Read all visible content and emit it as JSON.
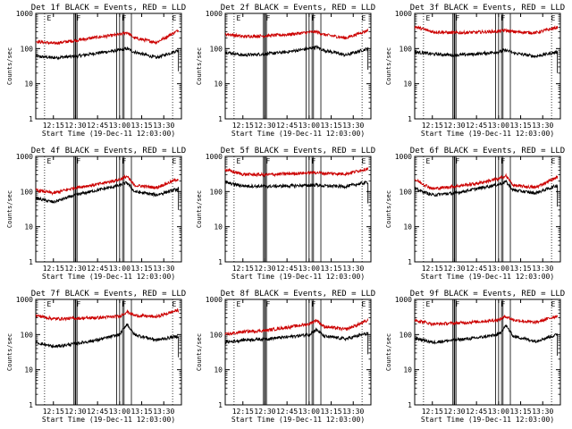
{
  "chart_data": [
    {
      "type": "line",
      "title": "Det 1f BLACK = Events, RED = LLD",
      "xlabel": "Start Time (19-Dec-11 12:03:00)",
      "ylabel": "Counts/sec",
      "x_ticks": [
        "12:15",
        "12:30",
        "12:45",
        "13:00",
        "13:15",
        "13:30"
      ],
      "y_ticks": [
        "1",
        "10",
        "100",
        "1000"
      ],
      "yscale": "log",
      "ylim": [
        1,
        1000
      ],
      "xlim": [
        "12:03",
        "13:42"
      ],
      "flags": [
        "E",
        "F",
        "F",
        "E"
      ],
      "series": [
        {
          "name": "BLACK = Events",
          "color": "#000000",
          "x": [
            "12:03",
            "12:15",
            "12:30",
            "12:45",
            "13:00",
            "13:05",
            "13:10",
            "13:25",
            "13:40"
          ],
          "y": [
            60,
            55,
            60,
            75,
            90,
            100,
            80,
            55,
            90
          ]
        },
        {
          "name": "RED = LLD",
          "color": "#cc0000",
          "x": [
            "12:03",
            "12:15",
            "12:30",
            "12:45",
            "13:00",
            "13:05",
            "13:10",
            "13:25",
            "13:40"
          ],
          "y": [
            160,
            140,
            170,
            210,
            250,
            290,
            200,
            150,
            330
          ]
        }
      ]
    },
    {
      "type": "line",
      "title": "Det 2f BLACK = Events, RED = LLD",
      "xlabel": "Start Time (19-Dec-11 12:03:00)",
      "ylabel": "Counts/sec",
      "x_ticks": [
        "12:15",
        "12:30",
        "12:45",
        "13:00",
        "13:15",
        "13:30"
      ],
      "y_ticks": [
        "1",
        "10",
        "100",
        "1000"
      ],
      "yscale": "log",
      "ylim": [
        1,
        1000
      ],
      "xlim": [
        "12:03",
        "13:42"
      ],
      "flags": [
        "E",
        "F",
        "F",
        "E"
      ],
      "series": [
        {
          "name": "BLACK = Events",
          "color": "#000000",
          "x": [
            "12:03",
            "12:15",
            "12:30",
            "12:45",
            "13:00",
            "13:05",
            "13:10",
            "13:25",
            "13:40"
          ],
          "y": [
            80,
            65,
            70,
            80,
            100,
            110,
            90,
            65,
            100
          ]
        },
        {
          "name": "RED = LLD",
          "color": "#cc0000",
          "x": [
            "12:03",
            "12:15",
            "12:30",
            "12:45",
            "13:00",
            "13:05",
            "13:10",
            "13:25",
            "13:40"
          ],
          "y": [
            260,
            220,
            230,
            250,
            290,
            300,
            250,
            200,
            330
          ]
        }
      ]
    },
    {
      "type": "line",
      "title": "Det 3f BLACK = Events, RED = LLD",
      "xlabel": "Start Time (19-Dec-11 12:03:00)",
      "ylabel": "Counts/sec",
      "x_ticks": [
        "12:15",
        "12:30",
        "12:45",
        "13:00",
        "13:15",
        "13:30"
      ],
      "y_ticks": [
        "1",
        "10",
        "100",
        "1000"
      ],
      "yscale": "log",
      "ylim": [
        1,
        1000
      ],
      "xlim": [
        "12:03",
        "13:42"
      ],
      "flags": [
        "E",
        "F",
        "F",
        "E"
      ],
      "series": [
        {
          "name": "BLACK = Events",
          "color": "#000000",
          "x": [
            "12:03",
            "12:15",
            "12:30",
            "12:45",
            "13:00",
            "13:05",
            "13:10",
            "13:25",
            "13:40"
          ],
          "y": [
            80,
            70,
            65,
            70,
            80,
            90,
            75,
            60,
            80
          ]
        },
        {
          "name": "RED = LLD",
          "color": "#cc0000",
          "x": [
            "12:03",
            "12:15",
            "12:30",
            "12:45",
            "13:00",
            "13:05",
            "13:10",
            "13:25",
            "13:40"
          ],
          "y": [
            420,
            300,
            280,
            290,
            310,
            330,
            300,
            280,
            400
          ]
        }
      ]
    },
    {
      "type": "line",
      "title": "Det 4f BLACK = Events, RED = LLD",
      "xlabel": "Start Time (19-Dec-11 12:03:00)",
      "ylabel": "Counts/sec",
      "x_ticks": [
        "12:15",
        "12:30",
        "12:45",
        "13:00",
        "13:15",
        "13:30"
      ],
      "y_ticks": [
        "1",
        "10",
        "100",
        "1000"
      ],
      "yscale": "log",
      "ylim": [
        1,
        1000
      ],
      "xlim": [
        "12:03",
        "13:42"
      ],
      "flags": [
        "E",
        "F",
        "F",
        "E"
      ],
      "series": [
        {
          "name": "BLACK = Events",
          "color": "#000000",
          "x": [
            "12:03",
            "12:15",
            "12:30",
            "12:45",
            "13:00",
            "13:05",
            "13:10",
            "13:25",
            "13:40"
          ],
          "y": [
            65,
            50,
            80,
            110,
            150,
            180,
            100,
            80,
            120
          ]
        },
        {
          "name": "RED = LLD",
          "color": "#cc0000",
          "x": [
            "12:03",
            "12:15",
            "12:30",
            "12:45",
            "13:00",
            "13:05",
            "13:10",
            "13:25",
            "13:40"
          ],
          "y": [
            110,
            90,
            130,
            160,
            220,
            270,
            150,
            130,
            230
          ]
        }
      ]
    },
    {
      "type": "line",
      "title": "Det 5f BLACK = Events, RED = LLD",
      "xlabel": "Start Time (19-Dec-11 12:03:00)",
      "ylabel": "Counts/sec",
      "x_ticks": [
        "12:15",
        "12:30",
        "12:45",
        "13:00",
        "13:15",
        "13:30"
      ],
      "y_ticks": [
        "1",
        "10",
        "100",
        "1000"
      ],
      "yscale": "log",
      "ylim": [
        1,
        1000
      ],
      "xlim": [
        "12:03",
        "13:42"
      ],
      "flags": [
        "E",
        "F",
        "F",
        "E"
      ],
      "series": [
        {
          "name": "BLACK = Events",
          "color": "#000000",
          "x": [
            "12:03",
            "12:15",
            "12:30",
            "12:45",
            "13:00",
            "13:05",
            "13:10",
            "13:25",
            "13:40"
          ],
          "y": [
            180,
            145,
            140,
            145,
            150,
            155,
            145,
            140,
            185
          ]
        },
        {
          "name": "RED = LLD",
          "color": "#cc0000",
          "x": [
            "12:03",
            "12:15",
            "12:30",
            "12:45",
            "13:00",
            "13:05",
            "13:10",
            "13:25",
            "13:40"
          ],
          "y": [
            420,
            310,
            300,
            320,
            340,
            350,
            330,
            320,
            450
          ]
        }
      ]
    },
    {
      "type": "line",
      "title": "Det 6f BLACK = Events, RED = LLD",
      "xlabel": "Start Time (19-Dec-11 12:03:00)",
      "ylabel": "Counts/sec",
      "x_ticks": [
        "12:15",
        "12:30",
        "12:45",
        "13:00",
        "13:15",
        "13:30"
      ],
      "y_ticks": [
        "1",
        "10",
        "100",
        "1000"
      ],
      "yscale": "log",
      "ylim": [
        1,
        1000
      ],
      "xlim": [
        "12:03",
        "13:42"
      ],
      "flags": [
        "E",
        "F",
        "F",
        "E"
      ],
      "series": [
        {
          "name": "BLACK = Events",
          "color": "#000000",
          "x": [
            "12:03",
            "12:15",
            "12:30",
            "12:45",
            "13:00",
            "13:05",
            "13:10",
            "13:25",
            "13:40"
          ],
          "y": [
            120,
            80,
            90,
            120,
            160,
            190,
            110,
            90,
            150
          ]
        },
        {
          "name": "RED = LLD",
          "color": "#cc0000",
          "x": [
            "12:03",
            "12:15",
            "12:30",
            "12:45",
            "13:00",
            "13:05",
            "13:10",
            "13:25",
            "13:40"
          ],
          "y": [
            220,
            120,
            140,
            170,
            230,
            280,
            150,
            130,
            260
          ]
        }
      ]
    },
    {
      "type": "line",
      "title": "Det 7f BLACK = Events, RED = LLD",
      "xlabel": "Start Time (19-Dec-11 12:03:00)",
      "ylabel": "Counts/sec",
      "x_ticks": [
        "12:15",
        "12:30",
        "12:45",
        "13:00",
        "13:15",
        "13:30"
      ],
      "y_ticks": [
        "1",
        "10",
        "100",
        "1000"
      ],
      "yscale": "log",
      "ylim": [
        1,
        1000
      ],
      "xlim": [
        "12:03",
        "13:42"
      ],
      "flags": [
        "E",
        "F",
        "F",
        "E"
      ],
      "series": [
        {
          "name": "BLACK = Events",
          "color": "#000000",
          "x": [
            "12:03",
            "12:15",
            "12:30",
            "12:45",
            "13:00",
            "13:05",
            "13:10",
            "13:25",
            "13:40"
          ],
          "y": [
            60,
            45,
            55,
            70,
            100,
            200,
            100,
            70,
            90
          ]
        },
        {
          "name": "RED = LLD",
          "color": "#cc0000",
          "x": [
            "12:03",
            "12:15",
            "12:30",
            "12:45",
            "13:00",
            "13:05",
            "13:10",
            "13:25",
            "13:40"
          ],
          "y": [
            350,
            280,
            290,
            300,
            330,
            450,
            350,
            320,
            500
          ]
        }
      ]
    },
    {
      "type": "line",
      "title": "Det 8f BLACK = Events, RED = LLD",
      "xlabel": "Start Time (19-Dec-11 12:03:00)",
      "ylabel": "Counts/sec",
      "x_ticks": [
        "12:15",
        "12:30",
        "12:45",
        "13:00",
        "13:15",
        "13:30"
      ],
      "y_ticks": [
        "1",
        "10",
        "100",
        "1000"
      ],
      "yscale": "log",
      "ylim": [
        1,
        1000
      ],
      "xlim": [
        "12:03",
        "13:42"
      ],
      "flags": [
        "E",
        "F",
        "F",
        "E"
      ],
      "series": [
        {
          "name": "BLACK = Events",
          "color": "#000000",
          "x": [
            "12:03",
            "12:15",
            "12:30",
            "12:45",
            "13:00",
            "13:05",
            "13:10",
            "13:25",
            "13:40"
          ],
          "y": [
            60,
            70,
            75,
            85,
            100,
            140,
            90,
            75,
            110
          ]
        },
        {
          "name": "RED = LLD",
          "color": "#cc0000",
          "x": [
            "12:03",
            "12:15",
            "12:30",
            "12:45",
            "13:00",
            "13:05",
            "13:10",
            "13:25",
            "13:40"
          ],
          "y": [
            100,
            120,
            130,
            160,
            200,
            260,
            170,
            140,
            250
          ]
        }
      ]
    },
    {
      "type": "line",
      "title": "Det 9f BLACK = Events, RED = LLD",
      "xlabel": "Start Time (19-Dec-11 12:03:00)",
      "ylabel": "Counts/sec",
      "x_ticks": [
        "12:15",
        "12:30",
        "12:45",
        "13:00",
        "13:15",
        "13:30"
      ],
      "y_ticks": [
        "1",
        "10",
        "100",
        "1000"
      ],
      "yscale": "log",
      "ylim": [
        1,
        1000
      ],
      "xlim": [
        "12:03",
        "13:42"
      ],
      "flags": [
        "E",
        "F",
        "F",
        "E"
      ],
      "series": [
        {
          "name": "BLACK = Events",
          "color": "#000000",
          "x": [
            "12:03",
            "12:15",
            "12:30",
            "12:45",
            "13:00",
            "13:05",
            "13:10",
            "13:25",
            "13:40"
          ],
          "y": [
            80,
            60,
            70,
            80,
            100,
            180,
            90,
            65,
            100
          ]
        },
        {
          "name": "RED = LLD",
          "color": "#cc0000",
          "x": [
            "12:03",
            "12:15",
            "12:30",
            "12:45",
            "13:00",
            "13:05",
            "13:10",
            "13:25",
            "13:40"
          ],
          "y": [
            260,
            200,
            210,
            230,
            260,
            330,
            260,
            220,
            340
          ]
        }
      ]
    }
  ]
}
